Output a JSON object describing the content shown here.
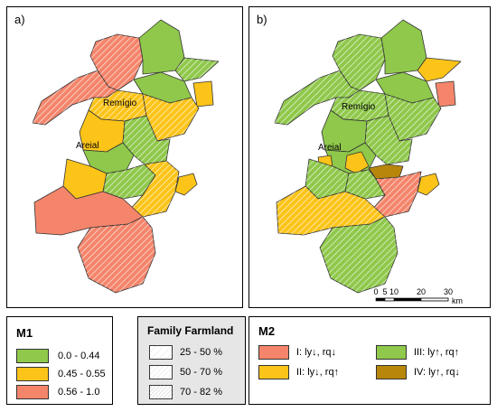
{
  "panels": [
    {
      "label": "a)",
      "places": [
        "Remígio",
        "Areial"
      ]
    },
    {
      "label": "b)",
      "places": [
        "Remígio",
        "Areial"
      ]
    }
  ],
  "scale": {
    "ticks": [
      "0",
      "5",
      "10",
      "20",
      "30"
    ],
    "unit": "km"
  },
  "legend_m1": {
    "title": "M1",
    "items": [
      {
        "label": "0.0  - 0.44",
        "color": "#8fc84b"
      },
      {
        "label": "0.45 - 0.55",
        "color": "#fcc419"
      },
      {
        "label": "0.56 - 1.0",
        "color": "#f4856b"
      }
    ]
  },
  "legend_farmland": {
    "title": "Family Farmland",
    "items": [
      {
        "label": "25 - 50 %",
        "pattern": "hatch-light"
      },
      {
        "label": "50 - 70 %",
        "pattern": "hatch-medium"
      },
      {
        "label": "70 - 82 %",
        "pattern": "hatch-dense"
      }
    ]
  },
  "legend_m2": {
    "title": "M2",
    "items": [
      {
        "label": "I: ly↓, rq↓",
        "color": "#f4856b"
      },
      {
        "label": "III: ly↑, rq↑",
        "color": "#8fc84b"
      },
      {
        "label": "II: ly↓, rq↑",
        "color": "#fcc419"
      },
      {
        "label": "IV: ly↑, rq↓",
        "color": "#b8860b"
      }
    ]
  }
}
